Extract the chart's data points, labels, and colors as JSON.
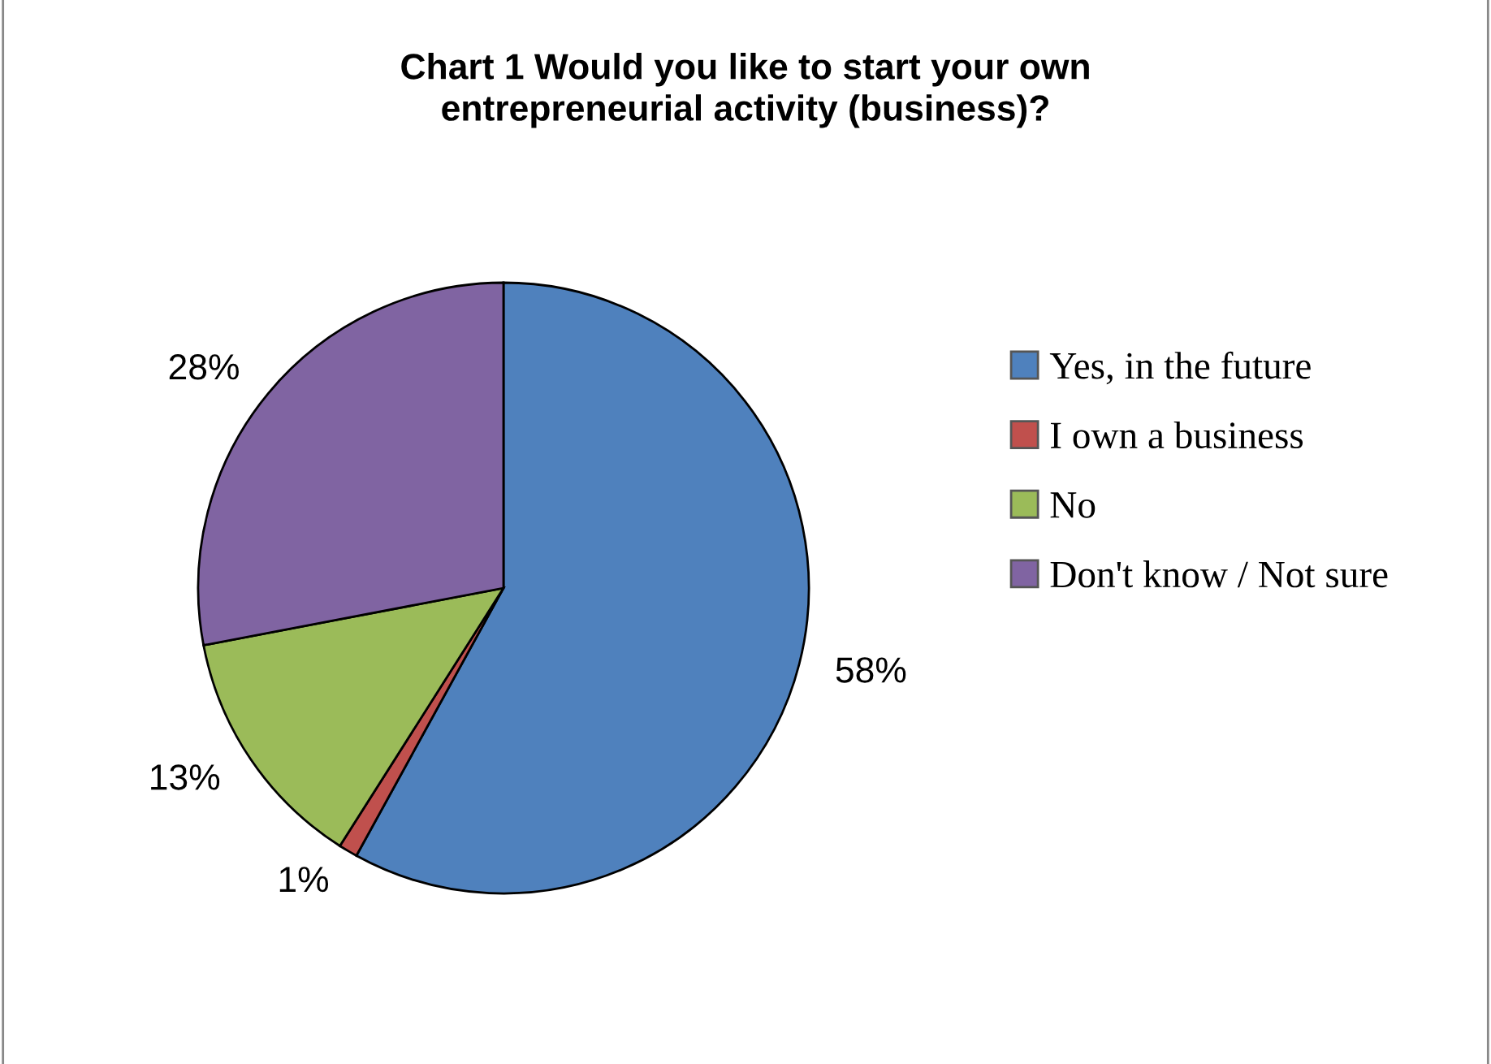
{
  "chart_data": {
    "type": "pie",
    "title": "Chart 1 Would you like to start your own entrepreneurial activity (business)?",
    "categories": [
      "Yes, in the future",
      "I own a business",
      "No",
      "Don't know / Not sure"
    ],
    "values": [
      58,
      1,
      13,
      28
    ],
    "colors": [
      "#4f81bd",
      "#c0504d",
      "#9bbb59",
      "#8064a2"
    ],
    "value_labels": [
      "58%",
      "1%",
      "13%",
      "28%"
    ],
    "legend": "right"
  }
}
